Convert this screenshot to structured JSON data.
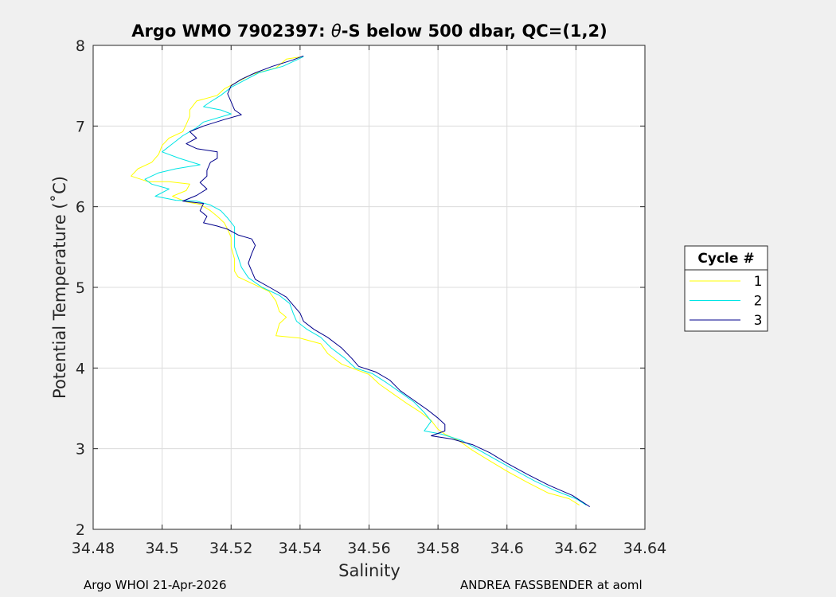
{
  "chart_data": {
    "type": "line",
    "title": {
      "prefix": "Argo WMO 7902397: ",
      "symbol": "θ",
      "suffix": "-S below 500 dbar,  QC=(1,2)"
    },
    "xlabel": "Salinity",
    "ylabel": "Potential Temperature (˚C)",
    "xlim": [
      34.48,
      34.64
    ],
    "ylim": [
      2,
      8
    ],
    "xticks": [
      "34.48",
      "34.5",
      "34.52",
      "34.54",
      "34.56",
      "34.58",
      "34.6",
      "34.62",
      "34.64"
    ],
    "yticks": [
      "2",
      "3",
      "4",
      "5",
      "6",
      "7",
      "8"
    ],
    "grid": true,
    "legend": {
      "title": "Cycle #",
      "placement": "outside-right"
    },
    "series": [
      {
        "name": "1",
        "color": "#ffff00",
        "points": [
          [
            34.5405,
            7.86
          ],
          [
            34.536,
            7.83
          ],
          [
            34.533,
            7.72
          ],
          [
            34.526,
            7.64
          ],
          [
            34.522,
            7.55
          ],
          [
            34.518,
            7.46
          ],
          [
            34.516,
            7.38
          ],
          [
            34.51,
            7.31
          ],
          [
            34.508,
            7.2
          ],
          [
            34.508,
            7.12
          ],
          [
            34.507,
            7.02
          ],
          [
            34.506,
            6.93
          ],
          [
            34.502,
            6.85
          ],
          [
            34.5,
            6.76
          ],
          [
            34.499,
            6.65
          ],
          [
            34.497,
            6.55
          ],
          [
            34.493,
            6.47
          ],
          [
            34.491,
            6.38
          ],
          [
            34.496,
            6.31
          ],
          [
            34.502,
            6.31
          ],
          [
            34.508,
            6.28
          ],
          [
            34.507,
            6.2
          ],
          [
            34.503,
            6.13
          ],
          [
            34.507,
            6.06
          ],
          [
            34.511,
            6.03
          ],
          [
            34.514,
            5.95
          ],
          [
            34.516,
            5.88
          ],
          [
            34.518,
            5.8
          ],
          [
            34.519,
            5.72
          ],
          [
            34.52,
            5.62
          ],
          [
            34.52,
            5.5
          ],
          [
            34.521,
            5.35
          ],
          [
            34.521,
            5.2
          ],
          [
            34.522,
            5.13
          ],
          [
            34.526,
            5.05
          ],
          [
            34.531,
            4.95
          ],
          [
            34.533,
            4.83
          ],
          [
            34.534,
            4.7
          ],
          [
            34.536,
            4.63
          ],
          [
            34.534,
            4.55
          ],
          [
            34.533,
            4.4
          ],
          [
            34.54,
            4.37
          ],
          [
            34.546,
            4.3
          ],
          [
            34.548,
            4.18
          ],
          [
            34.552,
            4.05
          ],
          [
            34.555,
            4.0
          ],
          [
            34.56,
            3.92
          ],
          [
            34.563,
            3.8
          ],
          [
            34.567,
            3.68
          ],
          [
            34.571,
            3.56
          ],
          [
            34.575,
            3.45
          ],
          [
            34.578,
            3.35
          ],
          [
            34.58,
            3.24
          ],
          [
            34.582,
            3.18
          ],
          [
            34.586,
            3.1
          ],
          [
            34.59,
            2.98
          ],
          [
            34.595,
            2.85
          ],
          [
            34.6,
            2.72
          ],
          [
            34.606,
            2.58
          ],
          [
            34.612,
            2.45
          ],
          [
            34.618,
            2.38
          ],
          [
            34.621,
            2.3
          ]
        ]
      },
      {
        "name": "2",
        "color": "#00e5e5",
        "points": [
          [
            34.541,
            7.86
          ],
          [
            34.538,
            7.8
          ],
          [
            34.535,
            7.74
          ],
          [
            34.528,
            7.66
          ],
          [
            34.524,
            7.57
          ],
          [
            34.52,
            7.48
          ],
          [
            34.517,
            7.38
          ],
          [
            34.514,
            7.3
          ],
          [
            34.512,
            7.24
          ],
          [
            34.517,
            7.2
          ],
          [
            34.52,
            7.15
          ],
          [
            34.512,
            7.05
          ],
          [
            34.51,
            6.98
          ],
          [
            34.506,
            6.88
          ],
          [
            34.503,
            6.78
          ],
          [
            34.5,
            6.68
          ],
          [
            34.505,
            6.6
          ],
          [
            34.511,
            6.52
          ],
          [
            34.504,
            6.47
          ],
          [
            34.499,
            6.42
          ],
          [
            34.495,
            6.34
          ],
          [
            34.497,
            6.28
          ],
          [
            34.502,
            6.22
          ],
          [
            34.498,
            6.13
          ],
          [
            34.504,
            6.08
          ],
          [
            34.51,
            6.07
          ],
          [
            34.514,
            6.02
          ],
          [
            34.517,
            5.95
          ],
          [
            34.519,
            5.86
          ],
          [
            34.521,
            5.75
          ],
          [
            34.521,
            5.62
          ],
          [
            34.521,
            5.5
          ],
          [
            34.522,
            5.38
          ],
          [
            34.523,
            5.25
          ],
          [
            34.525,
            5.12
          ],
          [
            34.529,
            5.0
          ],
          [
            34.534,
            4.9
          ],
          [
            34.537,
            4.8
          ],
          [
            34.538,
            4.68
          ],
          [
            34.539,
            4.58
          ],
          [
            34.542,
            4.48
          ],
          [
            34.546,
            4.38
          ],
          [
            34.549,
            4.25
          ],
          [
            34.553,
            4.12
          ],
          [
            34.556,
            4.0
          ],
          [
            34.561,
            3.93
          ],
          [
            34.565,
            3.82
          ],
          [
            34.569,
            3.7
          ],
          [
            34.573,
            3.58
          ],
          [
            34.576,
            3.45
          ],
          [
            34.578,
            3.34
          ],
          [
            34.576,
            3.22
          ],
          [
            34.581,
            3.18
          ],
          [
            34.587,
            3.1
          ],
          [
            34.592,
            2.98
          ],
          [
            34.597,
            2.86
          ],
          [
            34.602,
            2.74
          ],
          [
            34.608,
            2.6
          ],
          [
            34.614,
            2.48
          ],
          [
            34.62,
            2.38
          ],
          [
            34.623,
            2.3
          ]
        ]
      },
      {
        "name": "3",
        "color": "#00008b",
        "points": [
          [
            34.541,
            7.87
          ],
          [
            34.538,
            7.82
          ],
          [
            34.532,
            7.74
          ],
          [
            34.527,
            7.66
          ],
          [
            34.523,
            7.58
          ],
          [
            34.52,
            7.5
          ],
          [
            34.519,
            7.4
          ],
          [
            34.52,
            7.3
          ],
          [
            34.521,
            7.2
          ],
          [
            34.523,
            7.14
          ],
          [
            34.518,
            7.08
          ],
          [
            34.512,
            7.0
          ],
          [
            34.508,
            6.93
          ],
          [
            34.51,
            6.85
          ],
          [
            34.507,
            6.78
          ],
          [
            34.51,
            6.72
          ],
          [
            34.516,
            6.68
          ],
          [
            34.516,
            6.6
          ],
          [
            34.514,
            6.55
          ],
          [
            34.513,
            6.45
          ],
          [
            34.513,
            6.38
          ],
          [
            34.511,
            6.3
          ],
          [
            34.513,
            6.22
          ],
          [
            34.51,
            6.14
          ],
          [
            34.506,
            6.07
          ],
          [
            34.512,
            6.04
          ],
          [
            34.511,
            5.95
          ],
          [
            34.513,
            5.88
          ],
          [
            34.512,
            5.8
          ],
          [
            34.516,
            5.76
          ],
          [
            34.519,
            5.72
          ],
          [
            34.522,
            5.65
          ],
          [
            34.526,
            5.6
          ],
          [
            34.527,
            5.52
          ],
          [
            34.526,
            5.42
          ],
          [
            34.525,
            5.3
          ],
          [
            34.526,
            5.2
          ],
          [
            34.527,
            5.1
          ],
          [
            34.532,
            4.98
          ],
          [
            34.536,
            4.88
          ],
          [
            34.538,
            4.78
          ],
          [
            34.54,
            4.68
          ],
          [
            34.541,
            4.58
          ],
          [
            34.544,
            4.48
          ],
          [
            34.548,
            4.38
          ],
          [
            34.552,
            4.25
          ],
          [
            34.555,
            4.12
          ],
          [
            34.557,
            4.02
          ],
          [
            34.562,
            3.95
          ],
          [
            34.566,
            3.85
          ],
          [
            34.569,
            3.72
          ],
          [
            34.573,
            3.6
          ],
          [
            34.577,
            3.48
          ],
          [
            34.58,
            3.38
          ],
          [
            34.582,
            3.3
          ],
          [
            34.582,
            3.22
          ],
          [
            34.578,
            3.16
          ],
          [
            34.584,
            3.12
          ],
          [
            34.59,
            3.05
          ],
          [
            34.595,
            2.95
          ],
          [
            34.6,
            2.82
          ],
          [
            34.606,
            2.68
          ],
          [
            34.612,
            2.55
          ],
          [
            34.619,
            2.42
          ],
          [
            34.624,
            2.28
          ]
        ]
      }
    ]
  },
  "footer": {
    "left": "Argo WHOI 21-Apr-2026",
    "right": "ANDREA FASSBENDER at aoml"
  }
}
